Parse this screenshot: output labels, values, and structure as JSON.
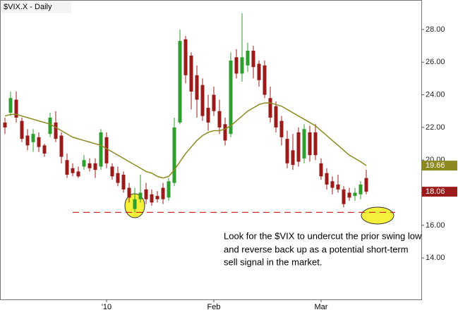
{
  "chart_data": {
    "type": "candlestick",
    "title": "$VIX.X - Daily",
    "categories": [
      null,
      null,
      null,
      null,
      null,
      null,
      null,
      null,
      null,
      null,
      null,
      null,
      null,
      null,
      null,
      null,
      null,
      null,
      "'10",
      null,
      null,
      null,
      null,
      null,
      null,
      null,
      null,
      null,
      null,
      null,
      null,
      null,
      null,
      null,
      null,
      null,
      null,
      "Feb",
      null,
      null,
      null,
      null,
      null,
      null,
      null,
      null,
      null,
      null,
      null,
      null,
      null,
      null,
      null,
      null,
      null,
      null,
      "Mar",
      null,
      null,
      null,
      null,
      null,
      null,
      null,
      null
    ],
    "open": [
      22.3,
      22.9,
      23.7,
      22.4,
      21.5,
      21.1,
      21.4,
      20.9,
      21.6,
      22.3,
      21.5,
      20.0,
      19.5,
      19.3,
      19.6,
      19.8,
      19.8,
      19.6,
      21.4,
      19.6,
      19.2,
      19.1,
      18.3,
      17.0,
      17.6,
      18.2,
      17.9,
      17.8,
      18.3,
      17.7,
      18.6,
      22.3,
      27.4,
      26.4,
      25.2,
      24.6,
      23.2,
      24.0,
      23.0,
      22.2,
      21.6,
      26.3,
      25.3,
      25.8,
      26.7,
      25.9,
      25.8,
      23.8,
      23.3,
      22.4,
      21.3,
      20.6,
      21.7,
      20.1,
      21.7,
      21.7,
      19.8,
      19.2,
      18.7,
      18.5,
      18.2,
      18.0,
      17.8,
      17.9,
      18.9
    ],
    "high": [
      22.6,
      24.2,
      24.2,
      22.6,
      21.9,
      21.9,
      21.7,
      21.0,
      22.9,
      23.0,
      21.7,
      20.4,
      19.8,
      19.6,
      20.3,
      20.1,
      20.1,
      21.9,
      21.7,
      19.8,
      19.6,
      19.3,
      18.6,
      18.3,
      19.1,
      18.6,
      18.2,
      18.1,
      18.6,
      18.9,
      22.6,
      28.0,
      27.6,
      26.6,
      25.8,
      25.0,
      24.0,
      24.5,
      23.7,
      22.6,
      26.6,
      26.8,
      29.0,
      27.2,
      27.0,
      26.1,
      26.1,
      24.5,
      23.6,
      22.7,
      21.8,
      21.6,
      22.0,
      22.2,
      22.1,
      22.2,
      20.1,
      19.5,
      19.0,
      19.1,
      18.4,
      18.3,
      18.3,
      18.7,
      19.4
    ],
    "low": [
      21.6,
      22.7,
      22.3,
      21.1,
      20.6,
      20.5,
      20.5,
      20.2,
      21.4,
      21.1,
      19.8,
      18.9,
      19.0,
      18.9,
      19.4,
      19.3,
      18.9,
      19.4,
      19.5,
      18.8,
      18.4,
      18.0,
      17.4,
      16.8,
      17.4,
      17.3,
      17.2,
      17.4,
      17.3,
      17.5,
      18.4,
      22.2,
      24.7,
      23.1,
      22.6,
      22.4,
      21.8,
      22.7,
      21.6,
      20.9,
      21.4,
      25.0,
      24.8,
      25.4,
      25.0,
      24.5,
      23.8,
      22.3,
      21.7,
      20.9,
      19.5,
      19.4,
      19.6,
      19.8,
      19.9,
      20.0,
      18.8,
      18.2,
      17.9,
      18.0,
      17.1,
      17.5,
      17.5,
      17.6,
      17.9
    ],
    "close": [
      22.0,
      23.8,
      22.6,
      21.3,
      20.9,
      21.6,
      20.8,
      20.4,
      22.6,
      21.3,
      20.2,
      19.1,
      19.2,
      19.0,
      20.0,
      19.5,
      19.4,
      21.7,
      19.8,
      19.0,
      18.6,
      18.2,
      17.7,
      17.6,
      18.0,
      17.6,
      17.4,
      17.6,
      17.6,
      18.7,
      22.0,
      27.3,
      25.2,
      24.2,
      23.7,
      22.7,
      22.3,
      23.0,
      22.0,
      21.2,
      26.1,
      25.3,
      26.3,
      26.7,
      25.7,
      24.9,
      24.0,
      22.6,
      22.0,
      21.4,
      19.8,
      19.7,
      19.9,
      21.9,
      20.3,
      20.3,
      19.0,
      18.5,
      18.3,
      18.2,
      17.3,
      17.7,
      18.0,
      18.5,
      18.06
    ],
    "close_last_label": "18.06",
    "up_color": "#2e9e2e",
    "down_color": "#9b1b1b",
    "moving_average": {
      "color": "#8c8a1e",
      "last_label": "19.66",
      "values": [
        22.7,
        22.8,
        22.8,
        22.7,
        22.6,
        22.5,
        22.4,
        22.3,
        22.2,
        22.0,
        21.8,
        21.6,
        21.4,
        21.3,
        21.2,
        21.1,
        21.0,
        20.9,
        20.7,
        20.5,
        20.3,
        20.1,
        19.9,
        19.7,
        19.5,
        19.3,
        19.2,
        19.0,
        18.9,
        19.0,
        19.4,
        19.9,
        20.4,
        20.8,
        21.2,
        21.5,
        21.7,
        21.8,
        21.8,
        21.9,
        22.1,
        22.4,
        22.7,
        23.0,
        23.2,
        23.4,
        23.5,
        23.5,
        23.4,
        23.3,
        23.1,
        22.9,
        22.7,
        22.5,
        22.3,
        22.1,
        21.8,
        21.5,
        21.2,
        20.9,
        20.6,
        20.3,
        20.1,
        19.9,
        19.66
      ]
    },
    "support_level": 16.8,
    "ylim": [
      11.46,
      29.81
    ],
    "yticks": [
      {
        "value": 14,
        "label": "14.00"
      },
      {
        "value": 16,
        "label": "16.00"
      },
      {
        "value": 18,
        "label": "18.00"
      },
      {
        "value": 20,
        "label": "20.00"
      },
      {
        "value": 22,
        "label": "22.00"
      },
      {
        "value": 24,
        "label": "24.00"
      },
      {
        "value": 26,
        "label": "26.00"
      },
      {
        "value": 28,
        "label": "28.00"
      }
    ],
    "annotation": [
      "Look for the $VIX to undercut the prior swing low",
      "and reverse back up as a potential short-term",
      "sell signal in the market."
    ]
  }
}
